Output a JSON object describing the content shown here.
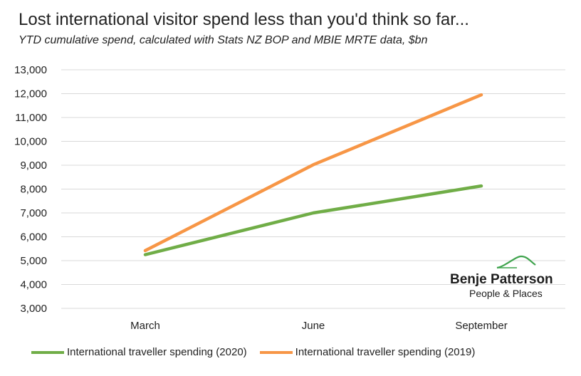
{
  "header": {
    "title": "Lost international visitor spend less than you'd think so far...",
    "subtitle": "YTD cumulative spend, calculated with Stats NZ BOP and MBIE MRTE data, $bn"
  },
  "colors": {
    "series_2020": "#70ad47",
    "series_2019": "#f79646",
    "grid": "#d9d9d9",
    "logo_green": "#3fa34d"
  },
  "chart_data": {
    "type": "line",
    "title": "Lost international visitor spend less than you'd think so far...",
    "subtitle": "YTD cumulative spend, calculated with Stats NZ BOP and MBIE MRTE data, $bn",
    "xlabel": "",
    "ylabel": "",
    "categories": [
      "March",
      "June",
      "September"
    ],
    "ylim": [
      3000,
      13000
    ],
    "yticks": [
      3000,
      4000,
      5000,
      6000,
      7000,
      8000,
      9000,
      10000,
      11000,
      12000,
      13000
    ],
    "ytick_labels": [
      "3,000",
      "4,000",
      "5,000",
      "6,000",
      "7,000",
      "8,000",
      "9,000",
      "10,000",
      "11,000",
      "12,000",
      "13,000"
    ],
    "grid": true,
    "legend_position": "bottom",
    "series": [
      {
        "name": "International traveller spending (2020)",
        "values": [
          5250,
          7000,
          8130
        ],
        "color": "#70ad47"
      },
      {
        "name": "International traveller spending (2019)",
        "values": [
          5420,
          9020,
          11950
        ],
        "color": "#f79646"
      }
    ]
  },
  "legend": {
    "items": [
      {
        "label": "International traveller spending (2020)",
        "color": "#70ad47"
      },
      {
        "label": "International traveller spending (2019)",
        "color": "#f79646"
      }
    ]
  },
  "logo": {
    "name": "Benje Patterson",
    "tagline": "People & Places",
    "icon": "hill-swoosh-icon"
  }
}
